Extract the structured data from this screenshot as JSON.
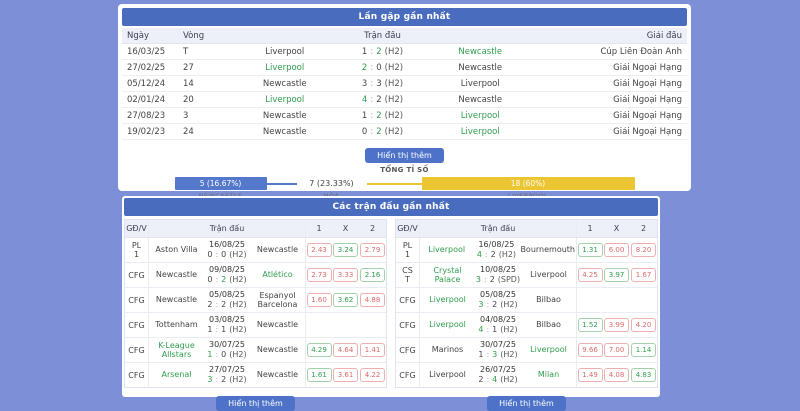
{
  "h2h": {
    "title": "Lần gặp gần nhất",
    "col_date": "Ngày",
    "col_round": "Vòng",
    "col_match": "Trận đấu",
    "col_league": "Giải đấu",
    "rows": [
      {
        "date": "16/03/25",
        "round": "T",
        "home": "Liverpool",
        "hw": false,
        "sh": "1",
        "sa": "2",
        "shw": false,
        "saw": true,
        "suffix": "(H2)",
        "away": "Newcastle",
        "aw": true,
        "league": "Cúp Liên Đoàn Anh"
      },
      {
        "date": "27/02/25",
        "round": "27",
        "home": "Liverpool",
        "hw": true,
        "sh": "2",
        "sa": "0",
        "shw": true,
        "saw": false,
        "suffix": "(H2)",
        "away": "Newcastle",
        "aw": false,
        "league": "Giải Ngoại Hạng"
      },
      {
        "date": "05/12/24",
        "round": "14",
        "home": "Newcastle",
        "hw": false,
        "sh": "3",
        "sa": "3",
        "shw": false,
        "saw": false,
        "suffix": "(H2)",
        "away": "Liverpool",
        "aw": false,
        "league": "Giải Ngoại Hạng"
      },
      {
        "date": "02/01/24",
        "round": "20",
        "home": "Liverpool",
        "hw": true,
        "sh": "4",
        "sa": "2",
        "shw": true,
        "saw": false,
        "suffix": "(H2)",
        "away": "Newcastle",
        "aw": false,
        "league": "Giải Ngoại Hạng"
      },
      {
        "date": "27/08/23",
        "round": "3",
        "home": "Newcastle",
        "hw": false,
        "sh": "1",
        "sa": "2",
        "shw": false,
        "saw": true,
        "suffix": "(H2)",
        "away": "Liverpool",
        "aw": true,
        "league": "Giải Ngoại Hạng"
      },
      {
        "date": "19/02/23",
        "round": "24",
        "home": "Newcastle",
        "hw": false,
        "sh": "0",
        "sa": "2",
        "shw": false,
        "saw": true,
        "suffix": "(H2)",
        "away": "Liverpool",
        "aw": true,
        "league": "Giải Ngoại Hạng"
      }
    ],
    "show_more": "Hiển thị thêm",
    "total_title": "TỔNG TỈ SỐ",
    "bar": {
      "home_value": "5 (16.67%)",
      "home_label": "NEWCASTLE",
      "home_color": "#5478cb",
      "draw_value": "7 (23.33%)",
      "draw_label": "HÒA",
      "away_value": "18 (60%)",
      "away_label": "LIVERPOOL",
      "away_color": "#ebc532"
    }
  },
  "recent": {
    "title": "Các trận đấu gần nhất",
    "col_gdv": "GĐ/V",
    "col_match": "Trận đấu",
    "col_1": "1",
    "col_x": "X",
    "col_2": "2",
    "show_more": "Hiển thị thêm",
    "left": {
      "rows": [
        {
          "gdv": [
            "PL",
            "1"
          ],
          "home": "Aston Villa",
          "hw": false,
          "date": "16/08/25",
          "sh": "0",
          "sa": "0",
          "shw": false,
          "saw": false,
          "suffix": "(H2)",
          "away": "Newcastle",
          "aw": false,
          "odds": [
            {
              "v": "2.43",
              "c": "red"
            },
            {
              "v": "3.24",
              "c": "green"
            },
            {
              "v": "2.79",
              "c": "red"
            }
          ]
        },
        {
          "gdv": [
            "CFG"
          ],
          "home": "Newcastle",
          "hw": false,
          "date": "09/08/25",
          "sh": "0",
          "sa": "2",
          "shw": false,
          "saw": true,
          "suffix": "(H2)",
          "away": "Atlético",
          "aw": true,
          "odds": [
            {
              "v": "2.73",
              "c": "red"
            },
            {
              "v": "3.33",
              "c": "red"
            },
            {
              "v": "2.16",
              "c": "green"
            }
          ]
        },
        {
          "gdv": [
            "CFG"
          ],
          "home": "Newcastle",
          "hw": false,
          "date": "05/08/25",
          "sh": "2",
          "sa": "2",
          "shw": false,
          "saw": false,
          "suffix": "(H2)",
          "away": "Espanyol Barcelona",
          "aw": false,
          "odds": [
            {
              "v": "1.60",
              "c": "red"
            },
            {
              "v": "3.62",
              "c": "green"
            },
            {
              "v": "4.88",
              "c": "red"
            }
          ]
        },
        {
          "gdv": [
            "CFG"
          ],
          "home": "Tottenham",
          "hw": false,
          "date": "03/08/25",
          "sh": "1",
          "sa": "1",
          "shw": false,
          "saw": false,
          "suffix": "(H2)",
          "away": "Newcastle",
          "aw": false,
          "odds": []
        },
        {
          "gdv": [
            "CFG"
          ],
          "home": "K-League Allstars",
          "hw": true,
          "date": "30/07/25",
          "sh": "1",
          "sa": "0",
          "shw": true,
          "saw": false,
          "suffix": "(H2)",
          "away": "Newcastle",
          "aw": false,
          "odds": [
            {
              "v": "4.29",
              "c": "green"
            },
            {
              "v": "4.64",
              "c": "red"
            },
            {
              "v": "1.41",
              "c": "red"
            }
          ]
        },
        {
          "gdv": [
            "CFG"
          ],
          "home": "Arsenal",
          "hw": true,
          "date": "27/07/25",
          "sh": "3",
          "sa": "2",
          "shw": true,
          "saw": false,
          "suffix": "(H2)",
          "away": "Newcastle",
          "aw": false,
          "odds": [
            {
              "v": "1.61",
              "c": "green"
            },
            {
              "v": "3.61",
              "c": "red"
            },
            {
              "v": "4.22",
              "c": "red"
            }
          ]
        }
      ]
    },
    "right": {
      "rows": [
        {
          "gdv": [
            "PL",
            "1"
          ],
          "home": "Liverpool",
          "hw": true,
          "date": "16/08/25",
          "sh": "4",
          "sa": "2",
          "shw": true,
          "saw": false,
          "suffix": "(H2)",
          "away": "Bournemouth",
          "aw": false,
          "odds": [
            {
              "v": "1.31",
              "c": "green"
            },
            {
              "v": "6.00",
              "c": "red"
            },
            {
              "v": "8.20",
              "c": "red"
            }
          ]
        },
        {
          "gdv": [
            "CS",
            "T"
          ],
          "home": "Crystal Palace",
          "hw": true,
          "date": "10/08/25",
          "sh": "3",
          "sa": "2",
          "shw": true,
          "saw": false,
          "suffix": "(SPD)",
          "away": "Liverpool",
          "aw": false,
          "odds": [
            {
              "v": "4.25",
              "c": "red"
            },
            {
              "v": "3.97",
              "c": "green"
            },
            {
              "v": "1.67",
              "c": "red"
            }
          ]
        },
        {
          "gdv": [
            "CFG"
          ],
          "home": "Liverpool",
          "hw": true,
          "date": "05/08/25",
          "sh": "3",
          "sa": "2",
          "shw": true,
          "saw": false,
          "suffix": "(H2)",
          "away": "Bilbao",
          "aw": false,
          "odds": []
        },
        {
          "gdv": [
            "CFG"
          ],
          "home": "Liverpool",
          "hw": true,
          "date": "04/08/25",
          "sh": "4",
          "sa": "1",
          "shw": true,
          "saw": false,
          "suffix": "(H2)",
          "away": "Bilbao",
          "aw": false,
          "odds": [
            {
              "v": "1.52",
              "c": "green"
            },
            {
              "v": "3.99",
              "c": "red"
            },
            {
              "v": "4.20",
              "c": "red"
            }
          ]
        },
        {
          "gdv": [
            "CFG"
          ],
          "home": "Marinos",
          "hw": false,
          "date": "30/07/25",
          "sh": "1",
          "sa": "3",
          "shw": false,
          "saw": true,
          "suffix": "(H2)",
          "away": "Liverpool",
          "aw": true,
          "odds": [
            {
              "v": "9.66",
              "c": "red"
            },
            {
              "v": "7.00",
              "c": "red"
            },
            {
              "v": "1.14",
              "c": "green"
            }
          ]
        },
        {
          "gdv": [
            "CFG"
          ],
          "home": "Liverpool",
          "hw": false,
          "date": "26/07/25",
          "sh": "2",
          "sa": "4",
          "shw": false,
          "saw": true,
          "suffix": "(H2)",
          "away": "Milan",
          "aw": true,
          "odds": [
            {
              "v": "1.49",
              "c": "red"
            },
            {
              "v": "4.08",
              "c": "red"
            },
            {
              "v": "4.83",
              "c": "green"
            }
          ]
        }
      ]
    }
  }
}
